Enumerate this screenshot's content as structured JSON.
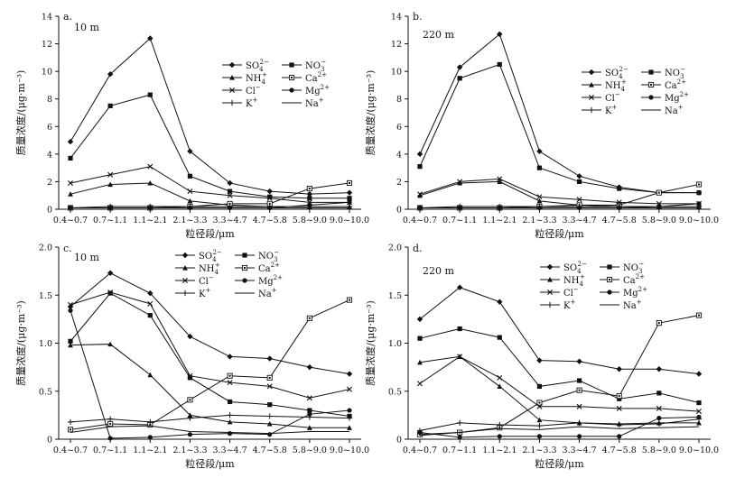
{
  "chart_data": [
    {
      "type": "line",
      "panel_label": "a.",
      "height_label": "10 m",
      "xlabel": "粒径段/μm",
      "ylabel": "质量浓度/(μg·m⁻³)",
      "categories": [
        "0.4~0.7",
        "0.7~1.1",
        "1.1~2.1",
        "2.1~3.3",
        "3.3~4.7",
        "4.7~5.8",
        "5.8~9.0",
        "9.0~10.0"
      ],
      "yticks": [
        "0",
        "2",
        "4",
        "6",
        "8",
        "10",
        "12",
        "14"
      ],
      "ylim": [
        0,
        14
      ],
      "series": [
        {
          "name": "SO4",
          "label_base": "SO",
          "label_sub": "4",
          "label_sup": "2−",
          "marker": "diamond",
          "values": [
            4.9,
            9.8,
            12.4,
            4.2,
            1.9,
            1.3,
            1.1,
            1.2
          ]
        },
        {
          "name": "NO3",
          "label_base": "NO",
          "label_sub": "3",
          "label_sup": "−",
          "marker": "square",
          "values": [
            3.7,
            7.5,
            8.3,
            2.4,
            1.3,
            0.9,
            0.8,
            0.8
          ]
        },
        {
          "name": "NH4",
          "label_base": "NH",
          "label_sub": "4",
          "label_sup": "+",
          "marker": "triangle",
          "values": [
            1.1,
            1.8,
            1.9,
            0.6,
            0.3,
            0.2,
            0.2,
            0.2
          ]
        },
        {
          "name": "Ca",
          "label_base": "Ca",
          "label_sub": "",
          "label_sup": "2+",
          "marker": "square-open",
          "values": [
            0.1,
            0.1,
            0.1,
            0.2,
            0.4,
            0.4,
            1.5,
            1.9
          ]
        },
        {
          "name": "Cl",
          "label_base": "Cl",
          "label_sub": "",
          "label_sup": "−",
          "marker": "x",
          "values": [
            1.9,
            2.5,
            3.1,
            1.3,
            1.0,
            0.8,
            0.5,
            0.5
          ]
        },
        {
          "name": "Mg",
          "label_base": "Mg",
          "label_sub": "",
          "label_sup": "2+",
          "marker": "circle",
          "values": [
            0.1,
            0.1,
            0.1,
            0.1,
            0.1,
            0.1,
            0.3,
            0.5
          ]
        },
        {
          "name": "K",
          "label_base": "K",
          "label_sub": "",
          "label_sup": "+",
          "marker": "plus",
          "values": [
            0.1,
            0.2,
            0.2,
            0.2,
            0.2,
            0.2,
            0.2,
            0.2
          ]
        },
        {
          "name": "Na",
          "label_base": "Na",
          "label_sub": "",
          "label_sup": "+",
          "marker": "none",
          "values": [
            0.1,
            0.1,
            0.1,
            0.1,
            0.1,
            0.1,
            0.1,
            0.1
          ]
        }
      ]
    },
    {
      "type": "line",
      "panel_label": "b.",
      "height_label": "220 m",
      "xlabel": "粒径段/μm",
      "ylabel": "质量浓度/(μg·m⁻³)",
      "categories": [
        "0.4~0.7",
        "0.7~1.1",
        "1.1~2.1",
        "2.1~3.3",
        "3.3~4.7",
        "4.7~5.8",
        "5.8~9.0",
        "9.0~10.0"
      ],
      "yticks": [
        "0",
        "2",
        "4",
        "6",
        "8",
        "10",
        "12",
        "14"
      ],
      "ylim": [
        0,
        14
      ],
      "series": [
        {
          "name": "SO4",
          "label_base": "SO",
          "label_sub": "4",
          "label_sup": "2−",
          "marker": "diamond",
          "values": [
            4.0,
            10.3,
            12.7,
            4.2,
            2.4,
            1.6,
            1.2,
            1.2
          ]
        },
        {
          "name": "NO3",
          "label_base": "NO",
          "label_sub": "3",
          "label_sup": "−",
          "marker": "square",
          "values": [
            3.1,
            9.5,
            10.5,
            3.0,
            2.0,
            1.5,
            1.2,
            1.2
          ]
        },
        {
          "name": "NH4",
          "label_base": "NH",
          "label_sub": "4",
          "label_sup": "+",
          "marker": "triangle",
          "values": [
            1.0,
            1.9,
            2.0,
            0.6,
            0.3,
            0.2,
            0.2,
            0.2
          ]
        },
        {
          "name": "Ca",
          "label_base": "Ca",
          "label_sub": "",
          "label_sup": "2+",
          "marker": "square-open",
          "values": [
            0.1,
            0.1,
            0.1,
            0.2,
            0.3,
            0.3,
            1.2,
            1.8
          ]
        },
        {
          "name": "Cl",
          "label_base": "Cl",
          "label_sub": "",
          "label_sup": "−",
          "marker": "x",
          "values": [
            1.1,
            2.0,
            2.2,
            0.9,
            0.7,
            0.5,
            0.4,
            0.4
          ]
        },
        {
          "name": "Mg",
          "label_base": "Mg",
          "label_sub": "",
          "label_sup": "2+",
          "marker": "circle",
          "values": [
            0.1,
            0.1,
            0.1,
            0.1,
            0.1,
            0.1,
            0.2,
            0.4
          ]
        },
        {
          "name": "K",
          "label_base": "K",
          "label_sub": "",
          "label_sup": "+",
          "marker": "plus",
          "values": [
            0.1,
            0.2,
            0.2,
            0.2,
            0.2,
            0.2,
            0.2,
            0.2
          ]
        },
        {
          "name": "Na",
          "label_base": "Na",
          "label_sub": "",
          "label_sup": "+",
          "marker": "none",
          "values": [
            0.1,
            0.1,
            0.1,
            0.1,
            0.1,
            0.1,
            0.1,
            0.1
          ]
        }
      ]
    },
    {
      "type": "line",
      "panel_label": "c.",
      "height_label": "10 m",
      "xlabel": "粒径段/μm",
      "ylabel": "质量浓度/(μg·m⁻³)",
      "categories": [
        "0.4~0.7",
        "0.7~1.1",
        "1.1~2.1",
        "2.1~3.3",
        "3.3~4.7",
        "4.7~5.8",
        "5.8~9.0",
        "9.0~10.0"
      ],
      "yticks": [
        "0",
        "0.5",
        "1.0",
        "1.5",
        "2.0"
      ],
      "ylim": [
        0,
        2
      ],
      "series": [
        {
          "name": "SO4",
          "label_base": "SO",
          "label_sub": "4",
          "label_sup": "2−",
          "marker": "diamond",
          "values": [
            1.38,
            1.73,
            1.52,
            1.07,
            0.86,
            0.84,
            0.75,
            0.68
          ]
        },
        {
          "name": "NO3",
          "label_base": "NO",
          "label_sub": "3",
          "label_sup": "−",
          "marker": "square",
          "values": [
            1.02,
            1.52,
            1.29,
            0.64,
            0.39,
            0.36,
            0.3,
            0.24
          ]
        },
        {
          "name": "NH4",
          "label_base": "NH",
          "label_sub": "4",
          "label_sup": "+",
          "marker": "triangle",
          "values": [
            0.98,
            0.99,
            0.67,
            0.25,
            0.18,
            0.16,
            0.12,
            0.12
          ]
        },
        {
          "name": "Ca",
          "label_base": "Ca",
          "label_sub": "",
          "label_sup": "2+",
          "marker": "square-open",
          "values": [
            0.1,
            0.16,
            0.15,
            0.41,
            0.66,
            0.64,
            1.26,
            1.45
          ]
        },
        {
          "name": "Cl",
          "label_base": "Cl",
          "label_sub": "",
          "label_sup": "−",
          "marker": "x",
          "values": [
            1.4,
            1.53,
            1.41,
            0.66,
            0.59,
            0.55,
            0.43,
            0.52
          ]
        },
        {
          "name": "Mg",
          "label_base": "Mg",
          "label_sub": "",
          "label_sup": "2+",
          "marker": "circle",
          "values": [
            1.34,
            0.01,
            0.02,
            0.05,
            0.06,
            0.05,
            0.26,
            0.3
          ]
        },
        {
          "name": "K",
          "label_base": "K",
          "label_sub": "",
          "label_sup": "+",
          "marker": "plus",
          "values": [
            0.18,
            0.21,
            0.18,
            0.22,
            0.25,
            0.24,
            0.23,
            0.22
          ]
        },
        {
          "name": "Na",
          "label_base": "Na",
          "label_sub": "",
          "label_sup": "+",
          "marker": "none",
          "values": [
            0.07,
            0.13,
            0.14,
            0.08,
            0.07,
            0.06,
            0.08,
            0.08
          ]
        }
      ]
    },
    {
      "type": "line",
      "panel_label": "d.",
      "height_label": "220 m",
      "xlabel": "粒径段/μm",
      "ylabel": "质量浓度/(μg·m⁻³)",
      "categories": [
        "0.4~0.7",
        "0.7~1.1",
        "1.1~2.1",
        "2.1~3.3",
        "3.3~4.7",
        "4.7~5.8",
        "5.8~9.0",
        "9.0~10.0"
      ],
      "yticks": [
        "0",
        "0.5",
        "1.0",
        "1.5",
        "2.0"
      ],
      "ylim": [
        0,
        2
      ],
      "series": [
        {
          "name": "SO4",
          "label_base": "SO",
          "label_sub": "4",
          "label_sup": "2−",
          "marker": "diamond",
          "values": [
            1.25,
            1.58,
            1.43,
            0.82,
            0.81,
            0.73,
            0.73,
            0.68
          ]
        },
        {
          "name": "NO3",
          "label_base": "NO",
          "label_sub": "3",
          "label_sup": "−",
          "marker": "square",
          "values": [
            1.05,
            1.15,
            1.06,
            0.55,
            0.61,
            0.42,
            0.48,
            0.38
          ]
        },
        {
          "name": "NH4",
          "label_base": "NH",
          "label_sub": "4",
          "label_sup": "+",
          "marker": "triangle",
          "values": [
            0.8,
            0.86,
            0.55,
            0.2,
            0.17,
            0.16,
            0.17,
            0.17
          ]
        },
        {
          "name": "Ca",
          "label_base": "Ca",
          "label_sub": "",
          "label_sup": "2+",
          "marker": "square-open",
          "values": [
            0.05,
            0.07,
            0.12,
            0.38,
            0.51,
            0.45,
            1.21,
            1.29
          ]
        },
        {
          "name": "Cl",
          "label_base": "Cl",
          "label_sub": "",
          "label_sup": "−",
          "marker": "x",
          "values": [
            0.58,
            0.86,
            0.64,
            0.34,
            0.34,
            0.32,
            0.32,
            0.29
          ]
        },
        {
          "name": "Mg",
          "label_base": "Mg",
          "label_sub": "",
          "label_sup": "2+",
          "marker": "circle",
          "values": [
            0.07,
            0.02,
            0.03,
            0.03,
            0.03,
            0.03,
            0.22,
            0.23
          ]
        },
        {
          "name": "K",
          "label_base": "K",
          "label_sub": "",
          "label_sup": "+",
          "marker": "plus",
          "values": [
            0.09,
            0.17,
            0.15,
            0.14,
            0.17,
            0.15,
            0.16,
            0.21
          ]
        },
        {
          "name": "Na",
          "label_base": "Na",
          "label_sub": "",
          "label_sup": "+",
          "marker": "none",
          "values": [
            0.04,
            0.07,
            0.11,
            0.1,
            0.13,
            0.11,
            0.12,
            0.13
          ]
        }
      ]
    }
  ]
}
